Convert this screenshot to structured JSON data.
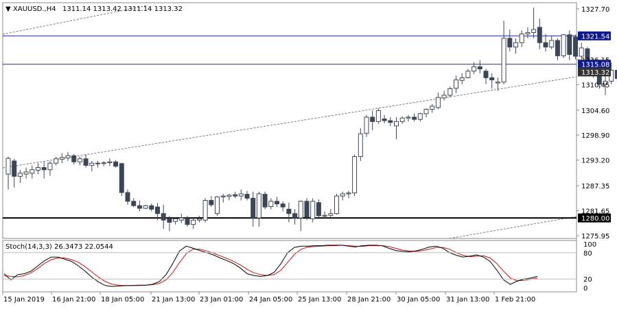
{
  "header": {
    "arrow": "▼",
    "symbol": "XAUUSD.,H4",
    "ohlc": "1311.14 1313.42 1311.14 1313.32"
  },
  "indicator": {
    "label": "Stoch(14,3,3) 26.3473 22.0544",
    "levels": [
      "100",
      "80",
      "20",
      "0"
    ]
  },
  "price_tags": [
    {
      "label": "1321.54",
      "price": 1321.54,
      "bg": "#0f1a8c",
      "fg": "#ffffff",
      "line_color": "#1b2a9c"
    },
    {
      "label": "1315.08",
      "price": 1315.08,
      "bg": "#0f1a8c",
      "fg": "#ffffff",
      "line_color": "#1b2a9c"
    },
    {
      "label": "1313.32",
      "price": 1313.32,
      "bg": "#333333",
      "fg": "#ffffff",
      "line_color": ""
    },
    {
      "label": "1280.00",
      "price": 1280.0,
      "bg": "#000000",
      "fg": "#ffffff",
      "line_color": "#000000"
    }
  ],
  "colors": {
    "bull_fill": "#ffffff",
    "bear_fill": "#3d4656",
    "candle_outline": "#3d4656",
    "stoch_main": "#000000",
    "stoch_signal": "#cc1111",
    "trendline": "#777777",
    "grid_frame": "#888888"
  },
  "chart_data": {
    "type": "candlestick",
    "price_axis_ticks": [
      "1327.70",
      "1316.15",
      "1310.45",
      "1304.60",
      "1298.90",
      "1293.20",
      "1287.35",
      "1281.65",
      "1275.95"
    ],
    "ylim": [
      1275.95,
      1327.7
    ],
    "time_axis_labels": [
      "15 Jan 2019",
      "16 Jan 21:00",
      "18 Jan 05:00",
      "21 Jan 13:00",
      "23 Jan 01:00",
      "24 Jan 05:00",
      "25 Jan 13:00",
      "28 Jan 21:00",
      "30 Jan 05:00",
      "31 Jan 13:00",
      "1 Feb 21:00"
    ],
    "candles": [
      [
        1290.0,
        1294.0,
        1286.5,
        1293.6
      ],
      [
        1293.0,
        1293.5,
        1287.0,
        1289.5
      ],
      [
        1289.5,
        1291.0,
        1288.0,
        1290.2
      ],
      [
        1290.0,
        1291.5,
        1289.0,
        1290.5
      ],
      [
        1290.2,
        1292.0,
        1289.0,
        1291.0
      ],
      [
        1290.9,
        1292.5,
        1290.0,
        1291.5
      ],
      [
        1291.5,
        1292.8,
        1289.0,
        1291.0
      ],
      [
        1291.0,
        1293.0,
        1289.6,
        1292.5
      ],
      [
        1292.5,
        1294.0,
        1292.0,
        1293.5
      ],
      [
        1293.4,
        1294.8,
        1292.5,
        1293.8
      ],
      [
        1293.7,
        1295.0,
        1293.0,
        1294.2
      ],
      [
        1294.2,
        1294.6,
        1292.2,
        1292.8
      ],
      [
        1292.8,
        1294.0,
        1292.0,
        1293.5
      ],
      [
        1293.5,
        1294.5,
        1291.5,
        1292.0
      ],
      [
        1292.0,
        1293.0,
        1290.6,
        1292.5
      ],
      [
        1292.4,
        1293.0,
        1291.5,
        1292.5
      ],
      [
        1292.4,
        1293.0,
        1291.8,
        1292.6
      ],
      [
        1292.6,
        1293.6,
        1291.8,
        1292.8
      ],
      [
        1292.8,
        1293.2,
        1291.5,
        1291.8
      ],
      [
        1292.4,
        1292.6,
        1285.0,
        1285.8
      ],
      [
        1285.8,
        1286.5,
        1283.0,
        1283.8
      ],
      [
        1283.8,
        1284.5,
        1282.5,
        1282.8
      ],
      [
        1282.8,
        1284.0,
        1281.5,
        1282.2
      ],
      [
        1282.2,
        1283.0,
        1282.0,
        1282.8
      ],
      [
        1282.8,
        1283.3,
        1281.5,
        1282.0
      ],
      [
        1282.5,
        1283.4,
        1279.5,
        1281.0
      ],
      [
        1281.0,
        1283.0,
        1277.5,
        1279.5
      ],
      [
        1279.8,
        1280.5,
        1277.0,
        1279.0
      ],
      [
        1279.2,
        1280.2,
        1278.5,
        1279.8
      ],
      [
        1279.5,
        1281.0,
        1278.8,
        1280.0
      ],
      [
        1279.9,
        1280.5,
        1278.0,
        1278.5
      ],
      [
        1278.5,
        1280.0,
        1277.5,
        1279.5
      ],
      [
        1279.5,
        1280.5,
        1279.0,
        1279.8
      ],
      [
        1279.5,
        1284.5,
        1279.0,
        1284.0
      ],
      [
        1284.0,
        1285.0,
        1282.5,
        1283.0
      ],
      [
        1281.0,
        1285.0,
        1280.5,
        1284.8
      ],
      [
        1284.8,
        1285.5,
        1283.5,
        1285.0
      ],
      [
        1284.9,
        1285.5,
        1284.0,
        1285.2
      ],
      [
        1285.3,
        1286.0,
        1284.5,
        1285.0
      ],
      [
        1285.0,
        1286.5,
        1284.0,
        1285.5
      ],
      [
        1285.4,
        1286.2,
        1284.0,
        1284.5
      ],
      [
        1284.5,
        1286.0,
        1278.0,
        1280.0
      ],
      [
        1280.0,
        1286.0,
        1278.0,
        1285.5
      ],
      [
        1285.4,
        1286.0,
        1282.0,
        1282.5
      ],
      [
        1282.6,
        1284.5,
        1282.0,
        1283.8
      ],
      [
        1283.8,
        1284.8,
        1282.5,
        1283.2
      ],
      [
        1283.2,
        1283.8,
        1281.5,
        1282.5
      ],
      [
        1282.0,
        1283.5,
        1279.0,
        1281.0
      ],
      [
        1281.0,
        1282.0,
        1278.5,
        1280.0
      ],
      [
        1280.0,
        1284.0,
        1277.0,
        1283.8
      ],
      [
        1283.8,
        1284.5,
        1279.5,
        1280.2
      ],
      [
        1279.8,
        1284.5,
        1279.0,
        1283.8
      ],
      [
        1283.5,
        1284.2,
        1280.0,
        1280.5
      ],
      [
        1280.4,
        1281.5,
        1279.8,
        1280.6
      ],
      [
        1280.6,
        1282.0,
        1280.0,
        1281.0
      ],
      [
        1281.0,
        1285.5,
        1280.8,
        1285.0
      ],
      [
        1285.0,
        1286.0,
        1284.0,
        1285.5
      ],
      [
        1285.5,
        1286.2,
        1284.5,
        1285.7
      ],
      [
        1285.7,
        1294.5,
        1285.0,
        1294.0
      ],
      [
        1294.0,
        1300.5,
        1293.0,
        1299.2
      ],
      [
        1299.3,
        1303.5,
        1298.5,
        1303.0
      ],
      [
        1303.0,
        1304.5,
        1300.0,
        1302.0
      ],
      [
        1302.0,
        1305.0,
        1301.5,
        1304.5
      ],
      [
        1302.6,
        1303.5,
        1301.6,
        1302.2
      ],
      [
        1302.2,
        1303.0,
        1301.0,
        1301.8
      ],
      [
        1301.0,
        1303.0,
        1298.0,
        1302.0
      ],
      [
        1302.0,
        1303.2,
        1301.5,
        1302.8
      ],
      [
        1302.8,
        1303.5,
        1302.0,
        1303.0
      ],
      [
        1303.0,
        1303.8,
        1302.0,
        1302.5
      ],
      [
        1302.5,
        1304.0,
        1302.0,
        1303.8
      ],
      [
        1303.8,
        1305.0,
        1303.0,
        1304.8
      ],
      [
        1304.8,
        1306.0,
        1304.0,
        1305.5
      ],
      [
        1305.2,
        1308.6,
        1304.8,
        1307.5
      ],
      [
        1307.4,
        1309.0,
        1306.8,
        1308.0
      ],
      [
        1308.0,
        1310.0,
        1307.5,
        1309.5
      ],
      [
        1309.6,
        1312.5,
        1308.5,
        1311.5
      ],
      [
        1311.4,
        1313.0,
        1310.5,
        1312.0
      ],
      [
        1312.0,
        1314.0,
        1311.8,
        1313.5
      ],
      [
        1313.5,
        1315.5,
        1312.8,
        1314.5
      ],
      [
        1314.5,
        1316.0,
        1313.0,
        1314.0
      ],
      [
        1313.5,
        1314.0,
        1310.5,
        1312.0
      ],
      [
        1312.0,
        1313.0,
        1309.5,
        1311.5
      ],
      [
        1310.8,
        1312.0,
        1309.0,
        1311.0
      ],
      [
        1311.0,
        1325.0,
        1310.5,
        1321.0
      ],
      [
        1321.0,
        1323.0,
        1318.0,
        1319.0
      ],
      [
        1319.0,
        1321.0,
        1317.5,
        1320.0
      ],
      [
        1320.0,
        1322.8,
        1319.0,
        1322.0
      ],
      [
        1322.0,
        1323.5,
        1321.0,
        1322.3
      ],
      [
        1322.3,
        1328.0,
        1321.0,
        1323.0
      ],
      [
        1323.5,
        1325.5,
        1318.5,
        1320.0
      ],
      [
        1320.0,
        1322.0,
        1318.0,
        1319.0
      ],
      [
        1319.0,
        1321.5,
        1318.5,
        1320.5
      ],
      [
        1320.5,
        1321.0,
        1316.0,
        1317.0
      ],
      [
        1317.0,
        1322.0,
        1316.5,
        1321.8
      ],
      [
        1321.8,
        1322.8,
        1316.0,
        1317.3
      ],
      [
        1321.3,
        1321.8,
        1316.2,
        1316.9
      ],
      [
        1316.9,
        1320.0,
        1316.0,
        1318.8
      ],
      [
        1318.6,
        1319.0,
        1315.0,
        1315.8
      ],
      [
        1315.8,
        1316.5,
        1312.0,
        1312.8
      ],
      [
        1312.8,
        1313.5,
        1309.5,
        1310.5
      ],
      [
        1310.5,
        1314.5,
        1308.0,
        1311.2
      ],
      [
        1311.2,
        1315.5,
        1310.5,
        1313.7
      ],
      [
        1313.7,
        1314.8,
        1311.0,
        1311.8
      ],
      [
        1311.14,
        1313.42,
        1311.14,
        1313.32
      ]
    ],
    "stochastic": {
      "main": [
        32,
        18,
        30,
        32,
        38,
        50,
        62,
        70,
        70,
        65,
        60,
        50,
        38,
        24,
        13,
        5,
        3,
        4,
        5,
        5,
        6,
        6,
        8,
        14,
        30,
        56,
        84,
        95,
        90,
        85,
        80,
        75,
        68,
        62,
        55,
        45,
        32,
        28,
        26,
        28,
        35,
        55,
        80,
        92,
        95,
        95,
        96,
        96,
        97,
        97,
        97,
        95,
        93,
        96,
        97,
        97,
        96,
        90,
        85,
        83,
        82,
        84,
        88,
        93,
        95,
        90,
        80,
        74,
        70,
        72,
        75,
        70,
        60,
        40,
        18,
        8,
        15,
        20,
        22,
        26
      ],
      "signal": [
        28,
        26,
        25,
        28,
        34,
        44,
        56,
        64,
        68,
        68,
        64,
        58,
        48,
        36,
        24,
        14,
        8,
        6,
        5,
        5,
        5,
        6,
        7,
        10,
        18,
        35,
        58,
        78,
        88,
        88,
        84,
        79,
        73,
        67,
        60,
        52,
        42,
        34,
        30,
        28,
        30,
        40,
        58,
        76,
        88,
        93,
        94,
        95,
        96,
        96,
        97,
        96,
        95,
        94,
        96,
        96,
        96,
        94,
        90,
        86,
        84,
        83,
        85,
        88,
        92,
        92,
        88,
        80,
        74,
        71,
        72,
        73,
        68,
        55,
        38,
        22,
        16,
        17,
        20,
        22
      ]
    }
  }
}
